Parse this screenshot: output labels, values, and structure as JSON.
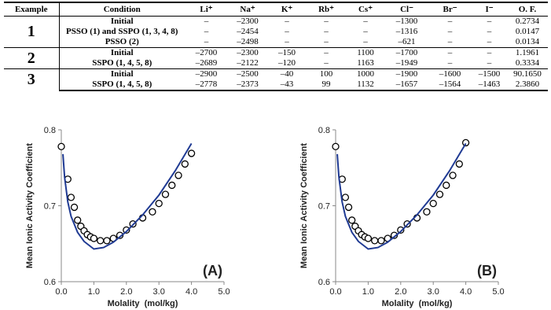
{
  "table": {
    "headers": [
      "Example",
      "Condition",
      "Li⁺",
      "Na⁺",
      "K⁺",
      "Rb⁺",
      "Cs⁺",
      "Cl⁻",
      "Br⁻",
      "I⁻",
      "O. F."
    ],
    "groups": [
      {
        "example": "1",
        "rows": [
          [
            "Initial",
            "–",
            "–2300",
            "–",
            "–",
            "–",
            "–1300",
            "–",
            "–",
            "0.2734"
          ],
          [
            "PSSO (1) and SSPO (1, 3, 4, 8)",
            "–",
            "–2454",
            "–",
            "–",
            "–",
            "–1316",
            "–",
            "–",
            "0.0147"
          ],
          [
            "PSSO (2)",
            "–",
            "–2498",
            "–",
            "–",
            "–",
            "–621",
            "–",
            "–",
            "0.0134"
          ]
        ]
      },
      {
        "example": "2",
        "rows": [
          [
            "Initial",
            "–2700",
            "–2300",
            "–150",
            "–",
            "1100",
            "–1700",
            "–",
            "–",
            "1.1961"
          ],
          [
            "SSPO (1, 4, 5, 8)",
            "–2689",
            "–2122",
            "–120",
            "–",
            "1163",
            "–1949",
            "–",
            "–",
            "0.3334"
          ]
        ]
      },
      {
        "example": "3",
        "rows": [
          [
            "Initial",
            "–2900",
            "–2500",
            "–40",
            "100",
            "1000",
            "–1900",
            "–1600",
            "–1500",
            "90.1650"
          ],
          [
            "SSPO (1, 4, 5, 8)",
            "–2778",
            "–2373",
            "–43",
            "99",
            "1132",
            "–1657",
            "–1564",
            "–1463",
            "2.3860"
          ]
        ]
      }
    ]
  },
  "chart_data": [
    {
      "type": "line",
      "annotation": "(A)",
      "x_label": "Molality  (mol/kg)",
      "y_label": "Mean Ionic Activity Coefficient",
      "xlim": [
        0,
        5
      ],
      "ylim": [
        0.6,
        0.8
      ],
      "xticks": [
        {
          "value": 0,
          "label": "0.0"
        },
        {
          "value": 1,
          "label": "1.0"
        },
        {
          "value": 2,
          "label": "2.0"
        },
        {
          "value": 3,
          "label": "3.0"
        },
        {
          "value": 4,
          "label": "4.0"
        },
        {
          "value": 5,
          "label": "5.0"
        }
      ],
      "yticks": [
        0.6,
        0.7,
        0.8
      ],
      "series": [
        {
          "type": "scatter",
          "color": "#000000",
          "x": [
            0.0,
            0.2,
            0.3,
            0.4,
            0.5,
            0.6,
            0.7,
            0.8,
            0.9,
            1.0,
            1.2,
            1.4,
            1.6,
            1.8,
            2.0,
            2.2,
            2.5,
            2.8,
            3.0,
            3.2,
            3.4,
            3.6,
            3.8,
            4.0
          ],
          "values": [
            0.778,
            0.735,
            0.711,
            0.698,
            0.681,
            0.673,
            0.667,
            0.662,
            0.659,
            0.657,
            0.654,
            0.654,
            0.657,
            0.661,
            0.668,
            0.676,
            0.684,
            0.692,
            0.703,
            0.715,
            0.727,
            0.74,
            0.755,
            0.769
          ]
        },
        {
          "type": "line",
          "color": "#1f3a93",
          "x": [
            0.05,
            0.1,
            0.2,
            0.3,
            0.5,
            0.7,
            1.0,
            1.3,
            1.6,
            2.0,
            2.5,
            3.0,
            3.5,
            4.0
          ],
          "values": [
            0.768,
            0.738,
            0.705,
            0.686,
            0.665,
            0.653,
            0.643,
            0.645,
            0.652,
            0.666,
            0.688,
            0.714,
            0.746,
            0.782
          ]
        }
      ]
    },
    {
      "type": "line",
      "annotation": "(B)",
      "x_label": "Molality  (mol/kg)",
      "y_label": "Mean Ionic Activity Coefficient",
      "xlim": [
        0,
        5
      ],
      "ylim": [
        0.6,
        0.8
      ],
      "xticks": [
        {
          "value": 0,
          "label": "0.0"
        },
        {
          "value": 1,
          "label": "1.0"
        },
        {
          "value": 2,
          "label": "2.0"
        },
        {
          "value": 3,
          "label": "3.0"
        },
        {
          "value": 4,
          "label": "4.0"
        },
        {
          "value": 5,
          "label": "5.0"
        }
      ],
      "yticks": [
        0.6,
        0.7,
        0.8
      ],
      "series": [
        {
          "type": "scatter",
          "color": "#000000",
          "x": [
            0.0,
            0.2,
            0.3,
            0.4,
            0.5,
            0.6,
            0.7,
            0.8,
            0.9,
            1.0,
            1.2,
            1.4,
            1.6,
            1.8,
            2.0,
            2.2,
            2.5,
            2.8,
            3.0,
            3.2,
            3.4,
            3.6,
            3.8,
            4.0
          ],
          "values": [
            0.778,
            0.735,
            0.711,
            0.698,
            0.681,
            0.673,
            0.667,
            0.662,
            0.659,
            0.657,
            0.654,
            0.654,
            0.657,
            0.661,
            0.668,
            0.676,
            0.684,
            0.692,
            0.703,
            0.715,
            0.727,
            0.74,
            0.755,
            0.783
          ]
        },
        {
          "type": "line",
          "color": "#1f3a93",
          "x": [
            0.05,
            0.1,
            0.2,
            0.3,
            0.5,
            0.7,
            1.0,
            1.3,
            1.6,
            2.0,
            2.5,
            3.0,
            3.5,
            4.0
          ],
          "values": [
            0.768,
            0.738,
            0.705,
            0.686,
            0.665,
            0.653,
            0.643,
            0.645,
            0.652,
            0.666,
            0.688,
            0.714,
            0.746,
            0.782
          ]
        }
      ]
    }
  ]
}
